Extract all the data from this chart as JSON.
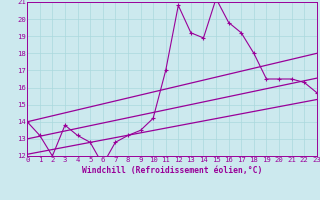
{
  "xlabel": "Windchill (Refroidissement éolien,°C)",
  "xlim": [
    0,
    23
  ],
  "ylim": [
    12,
    21
  ],
  "yticks": [
    12,
    13,
    14,
    15,
    16,
    17,
    18,
    19,
    20,
    21
  ],
  "xticks": [
    0,
    1,
    2,
    3,
    4,
    5,
    6,
    7,
    8,
    9,
    10,
    11,
    12,
    13,
    14,
    15,
    16,
    17,
    18,
    19,
    20,
    21,
    22,
    23
  ],
  "main_x": [
    0,
    1,
    2,
    3,
    4,
    5,
    6,
    7,
    8,
    9,
    10,
    11,
    12,
    13,
    14,
    15,
    16,
    17,
    18,
    19,
    20,
    21,
    22,
    23
  ],
  "main_y": [
    14.0,
    13.2,
    12.0,
    13.8,
    13.2,
    12.8,
    11.5,
    12.8,
    13.2,
    13.5,
    14.2,
    17.0,
    20.8,
    19.2,
    18.9,
    21.2,
    19.8,
    19.2,
    18.0,
    16.5,
    16.5,
    16.5,
    16.3,
    15.7
  ],
  "upper_line_x": [
    0,
    23
  ],
  "upper_line_y": [
    14.0,
    18.0
  ],
  "lower_line_x": [
    0,
    23
  ],
  "lower_line_y": [
    12.1,
    15.3
  ],
  "mid_line_x": [
    0,
    23
  ],
  "mid_line_y": [
    13.0,
    16.55
  ],
  "bg_color": "#cce9ee",
  "line_color": "#990099",
  "grid_color": "#aad8dd",
  "label_fontsize": 5.8,
  "tick_fontsize": 5.2
}
